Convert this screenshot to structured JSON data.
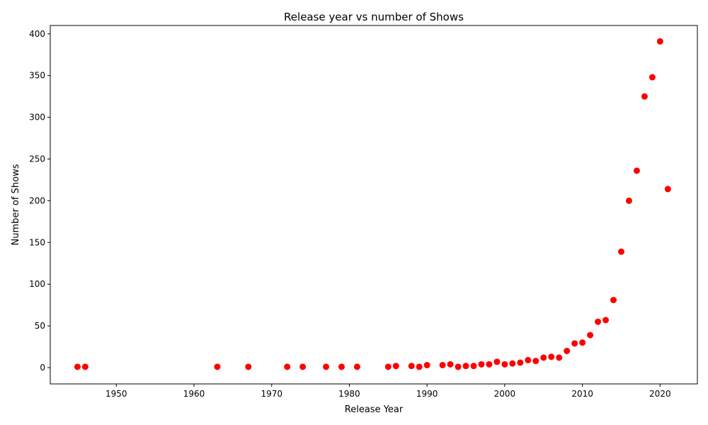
{
  "chart_data": {
    "type": "scatter",
    "title": "Release year vs number of Shows",
    "xlabel": "Release Year",
    "ylabel": "Number of Shows",
    "xlim": [
      1941.5,
      2024.8
    ],
    "ylim": [
      -19.5,
      410
    ],
    "xticks": [
      1950,
      1960,
      1970,
      1980,
      1990,
      2000,
      2010,
      2020
    ],
    "yticks": [
      0,
      50,
      100,
      150,
      200,
      250,
      300,
      350,
      400
    ],
    "grid": false,
    "marker_color": "#ff0000",
    "series": [
      {
        "name": "Shows",
        "points": [
          {
            "x": 1945,
            "y": 1
          },
          {
            "x": 1946,
            "y": 1
          },
          {
            "x": 1963,
            "y": 1
          },
          {
            "x": 1967,
            "y": 1
          },
          {
            "x": 1972,
            "y": 1
          },
          {
            "x": 1974,
            "y": 1
          },
          {
            "x": 1977,
            "y": 1
          },
          {
            "x": 1979,
            "y": 1
          },
          {
            "x": 1981,
            "y": 1
          },
          {
            "x": 1985,
            "y": 1
          },
          {
            "x": 1986,
            "y": 2
          },
          {
            "x": 1988,
            "y": 2
          },
          {
            "x": 1989,
            "y": 1
          },
          {
            "x": 1990,
            "y": 3
          },
          {
            "x": 1992,
            "y": 3
          },
          {
            "x": 1993,
            "y": 4
          },
          {
            "x": 1994,
            "y": 1
          },
          {
            "x": 1995,
            "y": 2
          },
          {
            "x": 1996,
            "y": 2
          },
          {
            "x": 1997,
            "y": 4
          },
          {
            "x": 1998,
            "y": 4
          },
          {
            "x": 1999,
            "y": 7
          },
          {
            "x": 2000,
            "y": 4
          },
          {
            "x": 2001,
            "y": 5
          },
          {
            "x": 2002,
            "y": 6
          },
          {
            "x": 2003,
            "y": 9
          },
          {
            "x": 2004,
            "y": 8
          },
          {
            "x": 2005,
            "y": 12
          },
          {
            "x": 2006,
            "y": 13
          },
          {
            "x": 2007,
            "y": 12
          },
          {
            "x": 2008,
            "y": 20
          },
          {
            "x": 2009,
            "y": 29
          },
          {
            "x": 2010,
            "y": 30
          },
          {
            "x": 2011,
            "y": 39
          },
          {
            "x": 2012,
            "y": 55
          },
          {
            "x": 2013,
            "y": 57
          },
          {
            "x": 2014,
            "y": 81
          },
          {
            "x": 2015,
            "y": 139
          },
          {
            "x": 2016,
            "y": 200
          },
          {
            "x": 2017,
            "y": 236
          },
          {
            "x": 2018,
            "y": 325
          },
          {
            "x": 2019,
            "y": 348
          },
          {
            "x": 2020,
            "y": 391
          },
          {
            "x": 2021,
            "y": 214
          }
        ]
      }
    ]
  }
}
